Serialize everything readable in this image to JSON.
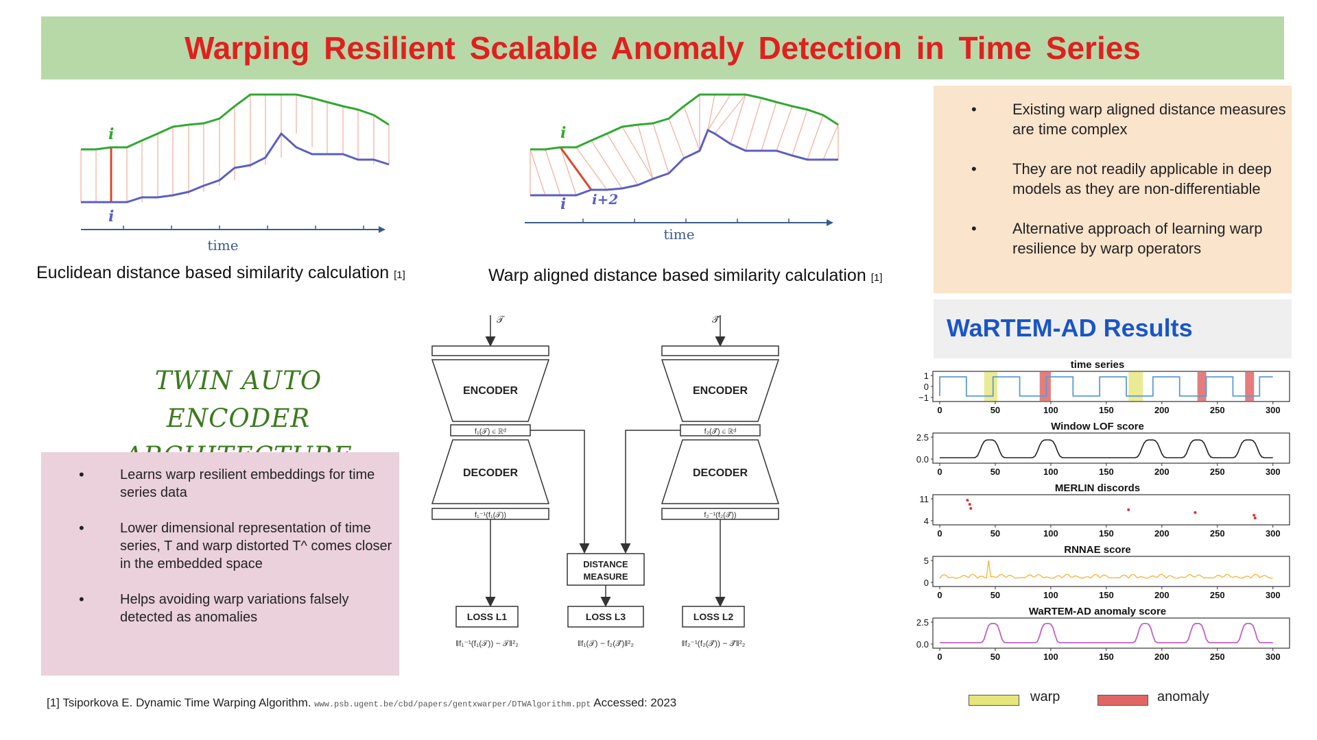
{
  "title": "Warping  Resilient  Scalable  Anomaly  Detection  in Time  Series",
  "euclid": {
    "caption": "Euclidean distance based similarity calculation",
    "ref": "[1]",
    "time_label": "time",
    "i_top": "i",
    "i_bottom": "i"
  },
  "warp": {
    "caption": "Warp aligned distance based similarity calculation",
    "ref": "[1]",
    "time_label": "time",
    "i_top": "i",
    "i_bottom": "i",
    "i_plus2": "i+2"
  },
  "summary": {
    "bullets": [
      "Existing warp aligned distance measures are time complex",
      "They are not readily applicable in deep models as they are non-differentiable",
      "Alternative approach of learning warp resilience by warp operators"
    ]
  },
  "twin": {
    "heading_line1": "TWIN AUTO ENCODER",
    "heading_line2": "ARCHITECTURE",
    "bullets": [
      "Learns warp resilient embeddings for time series data",
      "Lower dimensional representation of time series, T and warp distorted T^ comes closer in the embedded space",
      "Helps avoiding warp variations falsely detected as anomalies"
    ]
  },
  "architecture": {
    "input_left": "𝒯",
    "input_right": "𝒯̂",
    "encoder": "ENCODER",
    "decoder": "DECODER",
    "emb_left": "f₁(𝒯) ∈ ℝᵈ",
    "emb_right": "f₂(𝒯̂) ∈ ℝᵈ",
    "recon_left": "f₁⁻¹(f₁(𝒯))",
    "recon_right": "f₂⁻¹(f₂(𝒯̂))",
    "distance_line1": "DISTANCE",
    "distance_line2": "MEASURE",
    "loss1": "LOSS L1",
    "loss2": "LOSS L2",
    "loss3": "LOSS L3",
    "loss1_formula": "‖f₁⁻¹(f₁(𝒯)) − 𝒯‖²₂",
    "loss3_formula": "‖f₁(𝒯) − f₂(𝒯̂)‖²₂",
    "loss2_formula": "‖f₂⁻¹(f₂(𝒯̂)) − 𝒯̂‖²₂"
  },
  "results": {
    "title": "WaRTEM-AD Results",
    "panels": [
      {
        "title": "time series",
        "yticks": [
          "1",
          "0",
          "−1"
        ]
      },
      {
        "title": "Window LOF score",
        "yticks": [
          "2.5",
          "0.0"
        ]
      },
      {
        "title": "MERLIN discords",
        "yticks": [
          "11",
          "4"
        ]
      },
      {
        "title": "RNNAE score",
        "yticks": [
          "5",
          "0"
        ]
      },
      {
        "title": "WaRTEM-AD anomaly score",
        "yticks": [
          "2.5",
          "0.0"
        ]
      }
    ],
    "xticks": [
      "0",
      "50",
      "100",
      "150",
      "200",
      "250",
      "300"
    ],
    "colors": {
      "series": "#5b9bd5",
      "lof": "#222222",
      "merlin": "#e03030",
      "rnnae": "#f5b642",
      "wartem": "#c060c8"
    },
    "legend": {
      "warp": "warp",
      "anomaly": "anomaly",
      "warp_color": "#e6e67a",
      "anomaly_color": "#e06666"
    }
  },
  "footnote": {
    "text": "[1] Tsiporkova E. Dynamic Time Warping Algorithm.",
    "url": "www.psb.ugent.be/cbd/papers/gentxwarper/DTWAlgorithm.ppt",
    "accessed": "Accessed: 2023"
  }
}
